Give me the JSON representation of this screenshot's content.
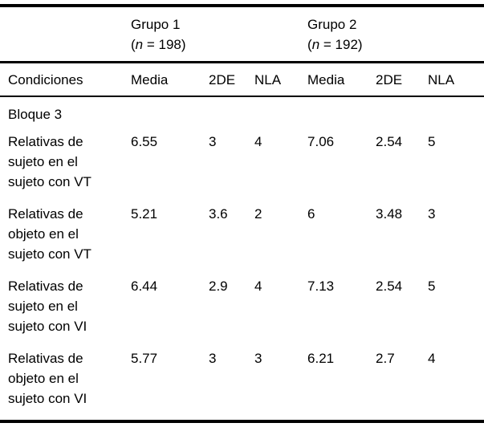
{
  "table": {
    "groups": [
      {
        "name": "Grupo 1",
        "n_open": "(",
        "n_var": "n",
        "n_rest": " = 198)"
      },
      {
        "name": "Grupo 2",
        "n_open": "(",
        "n_var": "n",
        "n_rest": " = 192)"
      }
    ],
    "columns": [
      "Condiciones",
      "Media",
      "2DE",
      "NLA",
      "Media",
      "2DE",
      "NLA"
    ],
    "section_label": "Bloque 3",
    "rows": [
      {
        "label_lines": [
          "Relativas de",
          "sujeto en el",
          "sujeto con VT"
        ],
        "values": [
          "6.55",
          "3",
          "4",
          "7.06",
          "2.54",
          "5"
        ]
      },
      {
        "label_lines": [
          "Relativas de",
          "objeto en el",
          "sujeto con VT"
        ],
        "values": [
          "5.21",
          "3.6",
          "2",
          "6",
          "3.48",
          "3"
        ]
      },
      {
        "label_lines": [
          "Relativas de",
          "sujeto en el",
          "sujeto con VI"
        ],
        "values": [
          "6.44",
          "2.9",
          "4",
          "7.13",
          "2.54",
          "5"
        ]
      },
      {
        "label_lines": [
          "Relativas de",
          "objeto en el",
          "sujeto con VI"
        ],
        "values": [
          "5.77",
          "3",
          "3",
          "6.21",
          "2.7",
          "4"
        ]
      }
    ],
    "colors": {
      "text": "#000000",
      "rule": "#000000",
      "background": "#ffffff"
    }
  }
}
